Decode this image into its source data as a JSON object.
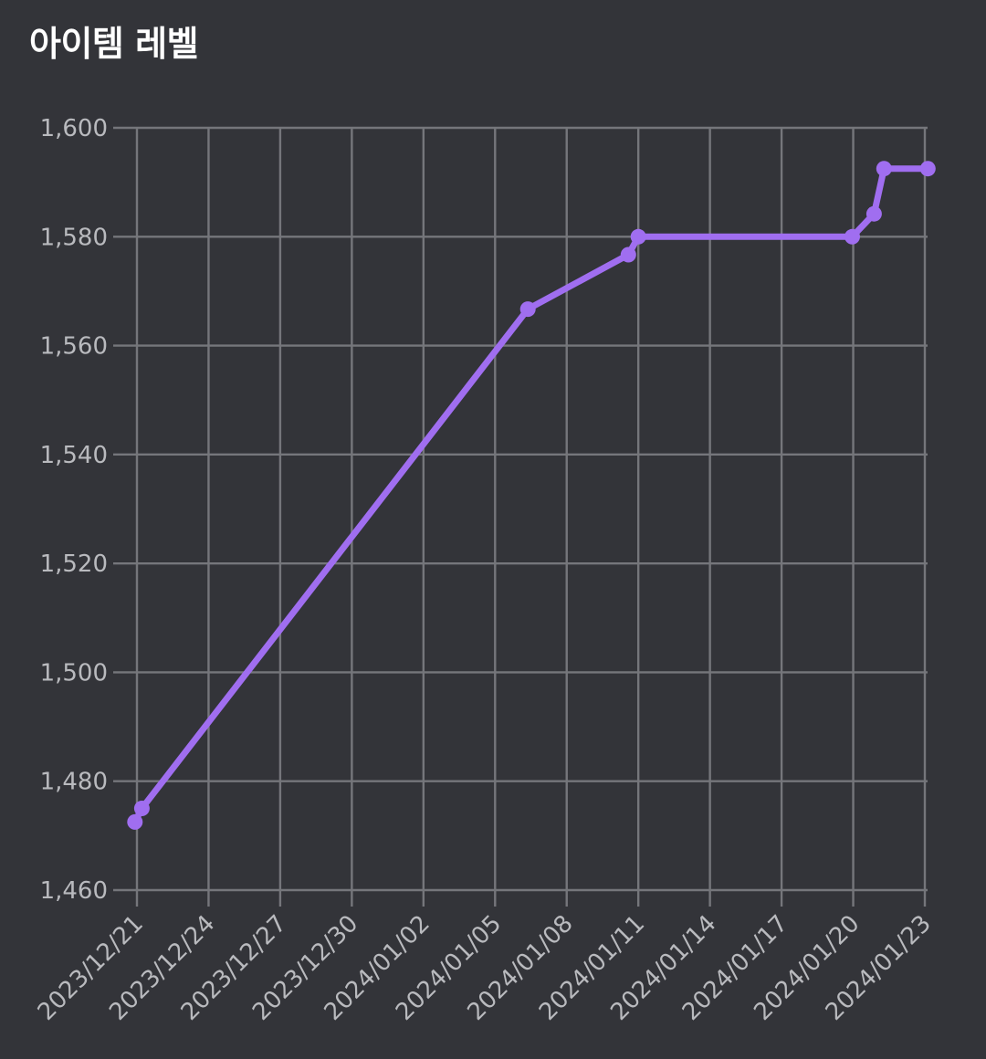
{
  "header": {
    "title": "아이템 레벨"
  },
  "colors": {
    "background": "#333439",
    "grid": "#75767b",
    "series": "#a06ef0",
    "tick_text": "#b9babe",
    "title_text": "#ffffff"
  },
  "chart_data": {
    "type": "line",
    "title": "아이템 레벨",
    "xlabel": "",
    "ylabel": "",
    "x_type": "date",
    "xlim": [
      "2023-12-21",
      "2024-01-23"
    ],
    "ylim": [
      1460,
      1600
    ],
    "grid": true,
    "x_tick_values": [
      "2023-12-21",
      "2023-12-24",
      "2023-12-27",
      "2023-12-30",
      "2024-01-02",
      "2024-01-05",
      "2024-01-08",
      "2024-01-11",
      "2024-01-14",
      "2024-01-17",
      "2024-01-20",
      "2024-01-23"
    ],
    "x_tick_labels": [
      "2023/12/21",
      "2023/12/24",
      "2023/12/27",
      "2023/12/30",
      "2024/01/02",
      "2024/01/05",
      "2024/01/08",
      "2024/01/11",
      "2024/01/14",
      "2024/01/17",
      "2024/01/20",
      "2024/01/23"
    ],
    "y_ticks": [
      1460,
      1480,
      1500,
      1520,
      1540,
      1560,
      1580,
      1600
    ],
    "y_tick_labels": [
      "1,460",
      "1,480",
      "1,500",
      "1,520",
      "1,540",
      "1,560",
      "1,580",
      "1,600"
    ],
    "series": [
      {
        "points": [
          {
            "x": "2023-12-20T22:00",
            "y": 1472.5
          },
          {
            "x": "2023-12-21T05:00",
            "y": 1475
          },
          {
            "x": "2024-01-06T09:00",
            "y": 1566.7
          },
          {
            "x": "2024-01-10T14:00",
            "y": 1576.7
          },
          {
            "x": "2024-01-11T00:00",
            "y": 1580
          },
          {
            "x": "2024-01-19T23:00",
            "y": 1580
          },
          {
            "x": "2024-01-20T21:00",
            "y": 1584.2
          },
          {
            "x": "2024-01-21T07:00",
            "y": 1592.5
          },
          {
            "x": "2024-01-23T03:00",
            "y": 1592.5
          }
        ]
      }
    ]
  }
}
